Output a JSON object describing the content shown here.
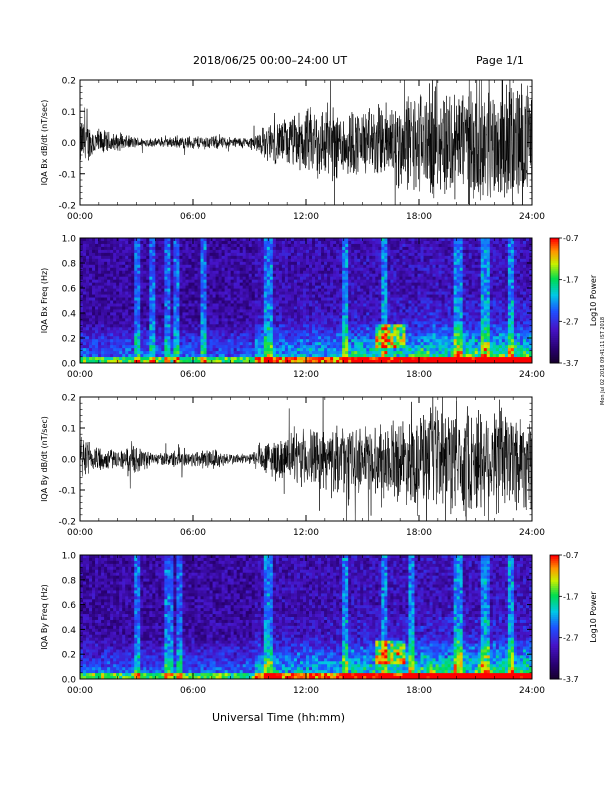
{
  "header": {
    "title": "2018/06/25  00:00–24:00 UT",
    "page": "Page 1/1"
  },
  "footer": {
    "xlabel": "Universal Time (hh:mm)",
    "stamp": "Mon Jul 02 2018 09:41:11 IST 2018"
  },
  "chart_data": [
    {
      "type": "line",
      "title": "",
      "ylabel": "IQA Bx dB/dt (nT/sec)",
      "xlim": [
        0,
        24
      ],
      "ylim": [
        -0.2,
        0.2
      ],
      "yticks": [
        "0.2",
        "0.1",
        "0.0",
        "-0.1",
        "-0.2"
      ],
      "xticks": [
        "00:00",
        "06:00",
        "12:00",
        "18:00",
        "24:00"
      ],
      "envelope": {
        "hours": [
          0,
          1,
          2,
          3,
          4,
          5,
          6,
          7,
          8,
          9,
          10,
          11,
          12,
          13,
          14,
          15,
          16,
          17,
          18,
          19,
          20,
          21,
          22,
          23,
          24
        ],
        "amplitude": [
          0.09,
          0.05,
          0.03,
          0.02,
          0.015,
          0.02,
          0.025,
          0.025,
          0.02,
          0.02,
          0.07,
          0.09,
          0.12,
          0.14,
          0.13,
          0.12,
          0.14,
          0.17,
          0.19,
          0.2,
          0.21,
          0.22,
          0.22,
          0.23,
          0.2
        ]
      }
    },
    {
      "type": "heatmap",
      "title": "",
      "ylabel": "IQA Bx Freq (Hz)",
      "colorbar_label": "Log10 Power",
      "colorbar_ticks": [
        "-0.7",
        "-1.7",
        "-2.7",
        "-3.7"
      ],
      "clim": [
        -3.7,
        -0.7
      ],
      "xlim": [
        0,
        24
      ],
      "ylim": [
        0.0,
        1.0
      ],
      "yticks": [
        "1.0",
        "0.8",
        "0.6",
        "0.4",
        "0.2",
        "0.0"
      ],
      "xticks": [
        "00:00",
        "06:00",
        "12:00",
        "18:00",
        "24:00"
      ]
    },
    {
      "type": "line",
      "title": "",
      "ylabel": "IQA By dB/dt (nT/sec)",
      "xlim": [
        0,
        24
      ],
      "ylim": [
        -0.2,
        0.2
      ],
      "yticks": [
        "0.2",
        "0.1",
        "0.0",
        "-0.1",
        "-0.2"
      ],
      "xticks": [
        "00:00",
        "06:00",
        "12:00",
        "18:00",
        "24:00"
      ],
      "envelope": {
        "hours": [
          0,
          1,
          2,
          3,
          4,
          5,
          6,
          7,
          8,
          9,
          10,
          11,
          12,
          13,
          14,
          15,
          16,
          17,
          18,
          19,
          20,
          21,
          22,
          23,
          24
        ],
        "amplitude": [
          0.08,
          0.05,
          0.03,
          0.05,
          0.02,
          0.03,
          0.03,
          0.04,
          0.02,
          0.02,
          0.07,
          0.08,
          0.11,
          0.11,
          0.12,
          0.12,
          0.13,
          0.15,
          0.17,
          0.19,
          0.2,
          0.2,
          0.21,
          0.2,
          0.18
        ]
      }
    },
    {
      "type": "heatmap",
      "title": "",
      "ylabel": "IQA By Freq (Hz)",
      "colorbar_label": "Log10 Power",
      "colorbar_ticks": [
        "-0.7",
        "-1.7",
        "-2.7",
        "-3.7"
      ],
      "clim": [
        -3.7,
        -0.7
      ],
      "xlim": [
        0,
        24
      ],
      "ylim": [
        0.0,
        1.0
      ],
      "yticks": [
        "1.0",
        "0.8",
        "0.6",
        "0.4",
        "0.2",
        "0.0"
      ],
      "xticks": [
        "00:00",
        "06:00",
        "12:00",
        "18:00",
        "24:00"
      ]
    }
  ]
}
